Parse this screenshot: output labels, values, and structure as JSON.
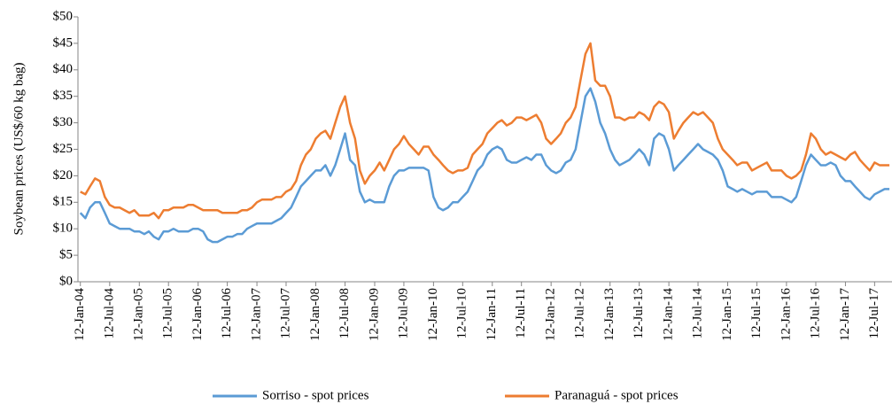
{
  "chart_data": {
    "type": "line",
    "y_label": "Soybean prices (US$/60 kg bag)",
    "x": [
      "2004-01-12",
      "2004-02-12",
      "2004-03-12",
      "2004-04-12",
      "2004-05-12",
      "2004-06-12",
      "2004-07-12",
      "2004-08-12",
      "2004-09-12",
      "2004-10-12",
      "2004-11-12",
      "2004-12-12",
      "2005-01-12",
      "2005-02-12",
      "2005-03-12",
      "2005-04-12",
      "2005-05-12",
      "2005-06-12",
      "2005-07-12",
      "2005-08-12",
      "2005-09-12",
      "2005-10-12",
      "2005-11-12",
      "2005-12-12",
      "2006-01-12",
      "2006-02-12",
      "2006-03-12",
      "2006-04-12",
      "2006-05-12",
      "2006-06-12",
      "2006-07-12",
      "2006-08-12",
      "2006-09-12",
      "2006-10-12",
      "2006-11-12",
      "2006-12-12",
      "2007-01-12",
      "2007-02-12",
      "2007-03-12",
      "2007-04-12",
      "2007-05-12",
      "2007-06-12",
      "2007-07-12",
      "2007-08-12",
      "2007-09-12",
      "2007-10-12",
      "2007-11-12",
      "2007-12-12",
      "2008-01-12",
      "2008-02-12",
      "2008-03-12",
      "2008-04-12",
      "2008-05-12",
      "2008-06-12",
      "2008-07-12",
      "2008-08-12",
      "2008-09-12",
      "2008-10-12",
      "2008-11-12",
      "2008-12-12",
      "2009-01-12",
      "2009-02-12",
      "2009-03-12",
      "2009-04-12",
      "2009-05-12",
      "2009-06-12",
      "2009-07-12",
      "2009-08-12",
      "2009-09-12",
      "2009-10-12",
      "2009-11-12",
      "2009-12-12",
      "2010-01-12",
      "2010-02-12",
      "2010-03-12",
      "2010-04-12",
      "2010-05-12",
      "2010-06-12",
      "2010-07-12",
      "2010-08-12",
      "2010-09-12",
      "2010-10-12",
      "2010-11-12",
      "2010-12-12",
      "2011-01-12",
      "2011-02-12",
      "2011-03-12",
      "2011-04-12",
      "2011-05-12",
      "2011-06-12",
      "2011-07-12",
      "2011-08-12",
      "2011-09-12",
      "2011-10-12",
      "2011-11-12",
      "2011-12-12",
      "2012-01-12",
      "2012-02-12",
      "2012-03-12",
      "2012-04-12",
      "2012-05-12",
      "2012-06-12",
      "2012-07-12",
      "2012-08-12",
      "2012-09-12",
      "2012-10-12",
      "2012-11-12",
      "2012-12-12",
      "2013-01-12",
      "2013-02-12",
      "2013-03-12",
      "2013-04-12",
      "2013-05-12",
      "2013-06-12",
      "2013-07-12",
      "2013-08-12",
      "2013-09-12",
      "2013-10-12",
      "2013-11-12",
      "2013-12-12",
      "2014-01-12",
      "2014-02-12",
      "2014-03-12",
      "2014-04-12",
      "2014-05-12",
      "2014-06-12",
      "2014-07-12",
      "2014-08-12",
      "2014-09-12",
      "2014-10-12",
      "2014-11-12",
      "2014-12-12",
      "2015-01-12",
      "2015-02-12",
      "2015-03-12",
      "2015-04-12",
      "2015-05-12",
      "2015-06-12",
      "2015-07-12",
      "2015-08-12",
      "2015-09-12",
      "2015-10-12",
      "2015-11-12",
      "2015-12-12",
      "2016-01-12",
      "2016-02-12",
      "2016-03-12",
      "2016-04-12",
      "2016-05-12",
      "2016-06-12",
      "2016-07-12",
      "2016-08-12",
      "2016-09-12",
      "2016-10-12",
      "2016-11-12",
      "2016-12-12",
      "2017-01-12",
      "2017-02-12",
      "2017-03-12",
      "2017-04-12",
      "2017-05-12",
      "2017-06-12",
      "2017-07-12",
      "2017-08-12",
      "2017-09-12",
      "2017-10-12"
    ],
    "series": [
      {
        "name": "Sorriso - spot prices",
        "color": "#5b9bd5",
        "values": [
          13,
          12,
          14,
          15,
          15,
          13,
          11,
          10.5,
          10,
          10,
          10,
          9.5,
          9.5,
          9,
          9.5,
          8.5,
          8,
          9.5,
          9.5,
          10,
          9.5,
          9.5,
          9.5,
          10,
          10,
          9.5,
          8,
          7.5,
          7.5,
          8,
          8.5,
          8.5,
          9,
          9,
          10,
          10.5,
          11,
          11,
          11,
          11,
          11.5,
          12,
          13,
          14,
          16,
          18,
          19,
          20,
          21,
          21,
          22,
          20,
          22,
          25,
          28,
          23,
          22,
          17,
          15,
          15.5,
          15,
          15,
          15,
          18,
          20,
          21,
          21,
          21.5,
          21.5,
          21.5,
          21.5,
          21,
          16,
          14,
          13.5,
          14,
          15,
          15,
          16,
          17,
          19,
          21,
          22,
          24,
          25,
          25.5,
          25,
          23,
          22.5,
          22.5,
          23,
          23.5,
          23,
          24,
          24,
          22,
          21,
          20.5,
          21,
          22.5,
          23,
          25,
          30,
          35,
          36.5,
          34,
          30,
          28,
          25,
          23,
          22,
          22.5,
          23,
          24,
          25,
          24,
          22,
          27,
          28,
          27.5,
          25,
          21,
          22,
          23,
          24,
          25,
          26,
          25,
          24.5,
          24,
          23,
          21,
          18,
          17.5,
          17,
          17.5,
          17,
          16.5,
          17,
          17,
          17,
          16,
          16,
          16,
          15.5,
          15,
          16,
          19,
          22,
          24,
          23,
          22,
          22,
          22.5,
          22,
          20,
          19,
          19,
          18,
          17,
          16,
          15.5,
          16.5,
          17,
          17.5,
          17.5
        ]
      },
      {
        "name": "Paranaguá - spot prices",
        "color": "#ed7d31",
        "values": [
          17,
          16.5,
          18,
          19.5,
          19,
          16,
          14.5,
          14,
          14,
          13.5,
          13,
          13.5,
          12.5,
          12.5,
          12.5,
          13,
          12,
          13.5,
          13.5,
          14,
          14,
          14,
          14.5,
          14.5,
          14,
          13.5,
          13.5,
          13.5,
          13.5,
          13,
          13,
          13,
          13,
          13.5,
          13.5,
          14,
          15,
          15.5,
          15.5,
          15.5,
          16,
          16,
          17,
          17.5,
          19,
          22,
          24,
          25,
          27,
          28,
          28.5,
          27,
          30,
          33,
          35,
          30,
          27,
          21,
          18.5,
          20,
          21,
          22.5,
          21,
          23,
          25,
          26,
          27.5,
          26,
          25,
          24,
          25.5,
          25.5,
          24,
          23,
          22,
          21,
          20.5,
          21,
          21,
          21.5,
          24,
          25,
          26,
          28,
          29,
          30,
          30.5,
          29.5,
          30,
          31,
          31,
          30.5,
          31,
          31.5,
          30,
          27,
          26,
          27,
          28,
          30,
          31,
          33,
          38,
          43,
          45,
          38,
          37,
          37,
          35,
          31,
          31,
          30.5,
          31,
          31,
          32,
          31.5,
          30.5,
          33,
          34,
          33.5,
          32,
          27,
          28.5,
          30,
          31,
          32,
          31.5,
          32,
          31,
          30,
          27,
          25,
          24,
          23,
          22,
          22.5,
          22.5,
          21,
          21.5,
          22,
          22.5,
          21,
          21,
          21,
          20,
          19.5,
          20,
          21,
          24,
          28,
          27,
          25,
          24,
          24.5,
          24,
          23.5,
          23,
          24,
          24.5,
          23,
          22,
          21,
          22.5,
          22,
          22,
          22
        ]
      }
    ],
    "xlim": [
      "2003-12-28",
      "2017-10-28"
    ],
    "xticks": [
      {
        "value": "2004-01-12",
        "label": "12-Jan-04"
      },
      {
        "value": "2004-07-12",
        "label": "12-Jul-04"
      },
      {
        "value": "2005-01-12",
        "label": "12-Jan-05"
      },
      {
        "value": "2005-07-12",
        "label": "12-Jul-05"
      },
      {
        "value": "2006-01-12",
        "label": "12-Jan-06"
      },
      {
        "value": "2006-07-12",
        "label": "12-Jul-06"
      },
      {
        "value": "2007-01-12",
        "label": "12-Jan-07"
      },
      {
        "value": "2007-07-12",
        "label": "12-Jul-07"
      },
      {
        "value": "2008-01-12",
        "label": "12-Jan-08"
      },
      {
        "value": "2008-07-12",
        "label": "12-Jul-08"
      },
      {
        "value": "2009-01-12",
        "label": "12-Jan-09"
      },
      {
        "value": "2009-07-12",
        "label": "12-Jul-09"
      },
      {
        "value": "2010-01-12",
        "label": "12-Jan-10"
      },
      {
        "value": "2010-07-12",
        "label": "12-Jul-10"
      },
      {
        "value": "2011-01-12",
        "label": "12-Jan-11"
      },
      {
        "value": "2011-07-12",
        "label": "12-Jul-11"
      },
      {
        "value": "2012-01-12",
        "label": "12-Jan-12"
      },
      {
        "value": "2012-07-12",
        "label": "12-Jul-12"
      },
      {
        "value": "2013-01-12",
        "label": "12-Jan-13"
      },
      {
        "value": "2013-07-12",
        "label": "12-Jul-13"
      },
      {
        "value": "2014-01-12",
        "label": "12-Jan-14"
      },
      {
        "value": "2014-07-12",
        "label": "12-Jul-14"
      },
      {
        "value": "2015-01-12",
        "label": "12-Jan-15"
      },
      {
        "value": "2015-07-12",
        "label": "12-Jul-15"
      },
      {
        "value": "2016-01-12",
        "label": "12-Jan-16"
      },
      {
        "value": "2016-07-12",
        "label": "12-Jul-16"
      },
      {
        "value": "2017-01-12",
        "label": "12-Jan-17"
      },
      {
        "value": "2017-07-12",
        "label": "12-Jul-17"
      }
    ],
    "ylim": [
      0,
      50
    ],
    "yticks": [
      {
        "value": 0,
        "label": "$0"
      },
      {
        "value": 5,
        "label": "$5"
      },
      {
        "value": 10,
        "label": "$10"
      },
      {
        "value": 15,
        "label": "$15"
      },
      {
        "value": 20,
        "label": "$20"
      },
      {
        "value": 25,
        "label": "$25"
      },
      {
        "value": 30,
        "label": "$30"
      },
      {
        "value": 35,
        "label": "$35"
      },
      {
        "value": 40,
        "label": "$40"
      },
      {
        "value": 45,
        "label": "$45"
      },
      {
        "value": 50,
        "label": "$50"
      }
    ],
    "grid": false,
    "legend": "bottom"
  }
}
